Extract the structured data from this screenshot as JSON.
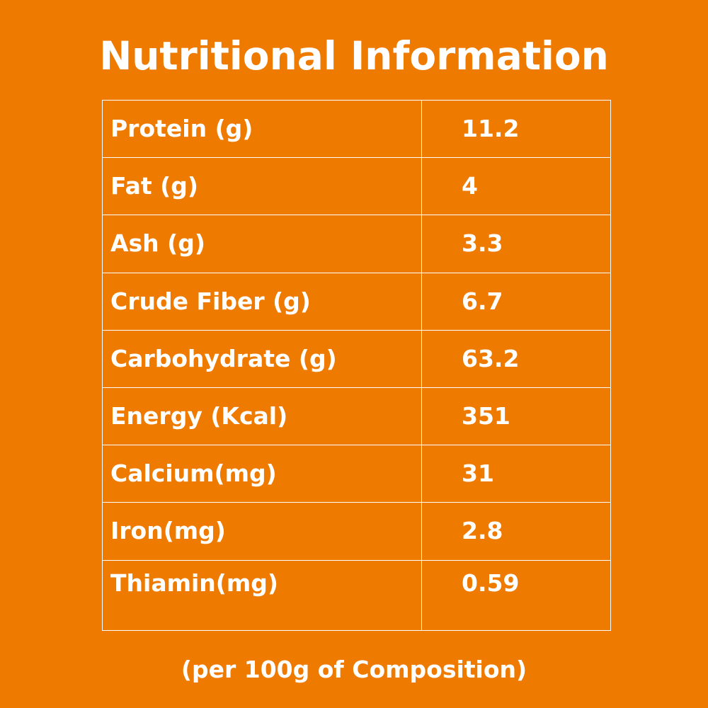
{
  "theme": {
    "background_color": "#EE7B00",
    "text_color": "#FFFFFF",
    "border_color": "#FFFFFF"
  },
  "title": "Nutritional Information",
  "rows": [
    {
      "nutrient": "Protein (g)",
      "value": "11.2"
    },
    {
      "nutrient": "Fat (g)",
      "value": "4"
    },
    {
      "nutrient": "Ash (g)",
      "value": "3.3"
    },
    {
      "nutrient": "Crude Fiber (g)",
      "value": "6.7"
    },
    {
      "nutrient": "Carbohydrate (g)",
      "value": "63.2"
    },
    {
      "nutrient": "Energy (Kcal)",
      "value": "351"
    },
    {
      "nutrient": "Calcium(mg)",
      "value": "31"
    },
    {
      "nutrient": "Iron(mg)",
      "value": "2.8"
    },
    {
      "nutrient": "Thiamin(mg)",
      "value": "0.59"
    }
  ],
  "footnote": "(per 100g of Composition)"
}
